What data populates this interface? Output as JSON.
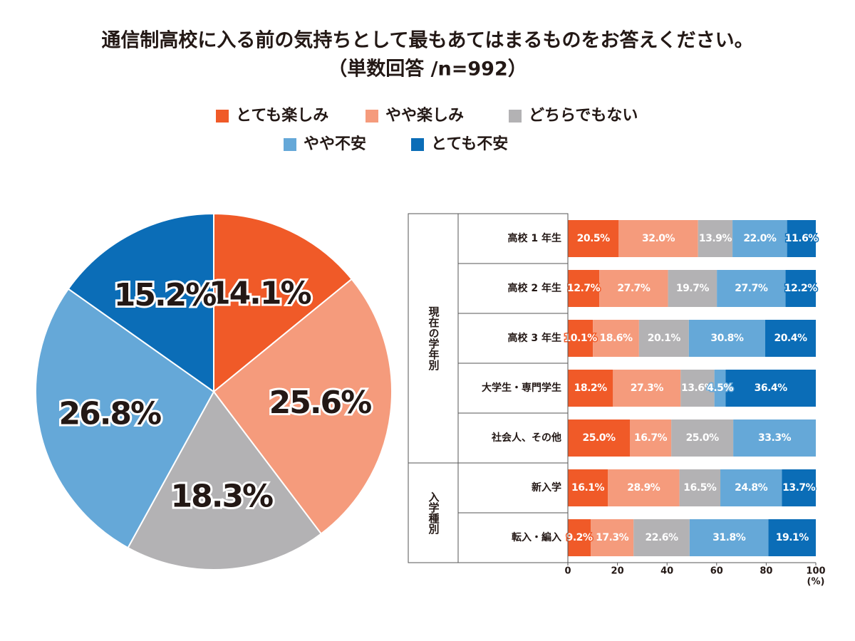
{
  "chart_data": [
    {
      "type": "pie",
      "title": "通信制高校に入る前の気持ちとして最もあてはまるものをお答えください。",
      "subtitle": "（単数回答 /n=992）",
      "values": [
        14.1,
        25.6,
        18.3,
        26.8,
        15.2
      ],
      "value_labels": [
        "14.1%",
        "25.6%",
        "18.3%",
        "26.8%",
        "15.2%"
      ],
      "colors": [
        "#f05a28",
        "#f59b7c",
        "#b3b2b4",
        "#65a8d8",
        "#0b6db7"
      ]
    },
    {
      "type": "stacked-bar-horizontal",
      "groups": [
        {
          "label": "現在の学年別",
          "categories": [
            "高校 1 年生",
            "高校 2 年生",
            "高校 3 年生",
            "大学生・専門学生",
            "社会人、その他"
          ]
        },
        {
          "label": "入学種別",
          "categories": [
            "新入学",
            "転入・編入"
          ]
        }
      ],
      "series": [
        {
          "name": "とても楽しみ",
          "color": "#f05a28",
          "values": [
            20.5,
            12.7,
            10.1,
            18.2,
            25.0,
            16.1,
            9.2
          ],
          "value_labels": [
            "20.5%",
            "12.7%",
            "10.1%",
            "18.2%",
            "25.0%",
            "16.1%",
            "9.2%"
          ]
        },
        {
          "name": "やや楽しみ",
          "color": "#f59b7c",
          "values": [
            32.0,
            27.7,
            18.6,
            27.3,
            16.7,
            28.9,
            17.3
          ],
          "value_labels": [
            "32.0%",
            "27.7%",
            "18.6%",
            "27.3%",
            "16.7%",
            "28.9%",
            "17.3%"
          ]
        },
        {
          "name": "どちらでもない",
          "color": "#b3b2b4",
          "values": [
            13.9,
            19.7,
            20.1,
            13.6,
            25.0,
            16.5,
            22.6
          ],
          "value_labels": [
            "13.9%",
            "19.7%",
            "20.1%",
            "13.6%",
            "25.0%",
            "16.5%",
            "22.6%"
          ]
        },
        {
          "name": "やや不安",
          "color": "#65a8d8",
          "values": [
            22.0,
            27.7,
            30.8,
            4.5,
            33.3,
            24.8,
            31.8
          ],
          "value_labels": [
            "22.0%",
            "27.7%",
            "30.8%",
            "4.5%",
            "33.3%",
            "24.8%",
            "31.8%"
          ]
        },
        {
          "name": "とても不安",
          "color": "#0b6db7",
          "values": [
            11.6,
            12.2,
            20.4,
            36.4,
            null,
            13.7,
            19.1
          ],
          "value_labels": [
            "11.6%",
            "12.2%",
            "20.4%",
            "36.4%",
            null,
            "13.7%",
            "19.1%"
          ]
        }
      ],
      "xlim": [
        0,
        100
      ],
      "xticks": [
        0,
        20,
        40,
        60,
        80,
        100
      ],
      "x_unit": "(%)"
    }
  ]
}
